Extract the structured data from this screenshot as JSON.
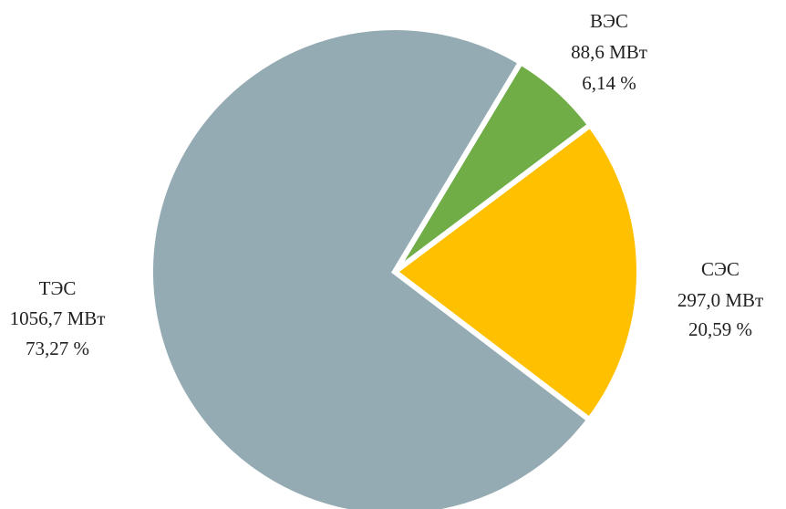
{
  "chart_data": {
    "type": "pie",
    "unit": "МВт",
    "start_angle_deg": 59,
    "direction": "clockwise",
    "slices": [
      {
        "name": "ВЭС",
        "value": 88.6,
        "value_label": "88,6 МВт",
        "percent": 6.14,
        "percent_label": "6,14 %",
        "color": "#70ad47"
      },
      {
        "name": "СЭС",
        "value": 297.0,
        "value_label": "297,0 МВт",
        "percent": 20.59,
        "percent_label": "20,59 %",
        "color": "#ffc000"
      },
      {
        "name": "ТЭС",
        "value": 1056.7,
        "value_label": "1056,7 МВт",
        "percent": 73.27,
        "percent_label": "73,27 %",
        "color": "#94abb3"
      }
    ],
    "separator_color": "#ffffff"
  }
}
